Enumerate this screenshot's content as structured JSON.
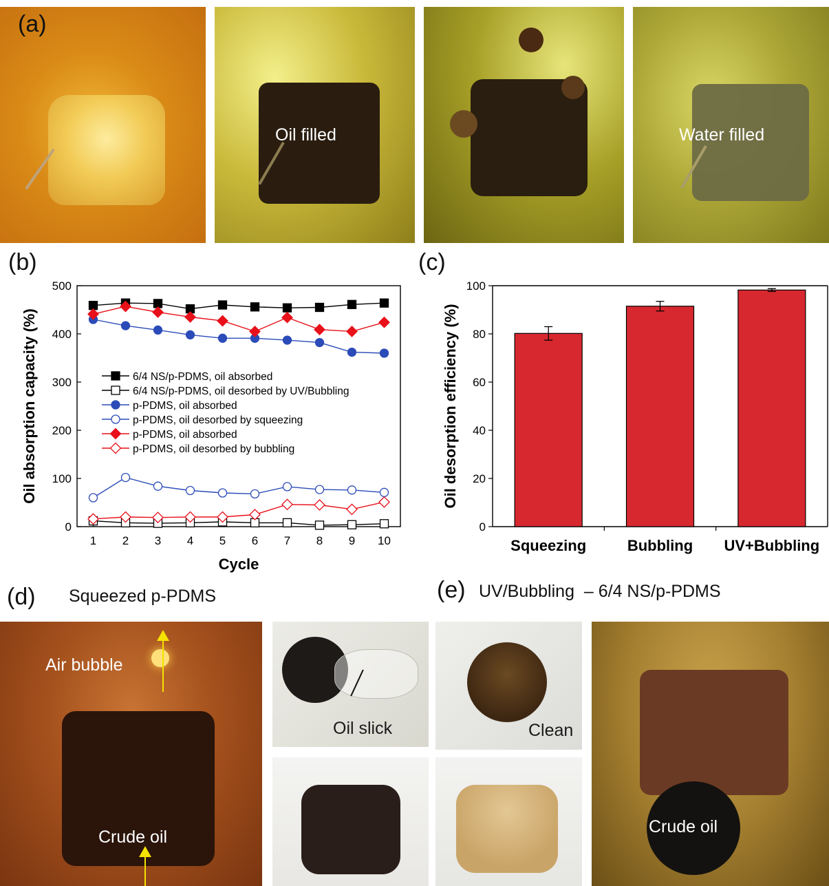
{
  "panels": {
    "a": {
      "letter": "(a)",
      "labels": [
        "Oil filled",
        "Water filled"
      ]
    },
    "b": {
      "letter": "(b)"
    },
    "c": {
      "letter": "(c)"
    },
    "d": {
      "letter": "(d)",
      "heading": "Squeezed p-PDMS",
      "labels": {
        "air_bubble": "Air bubble",
        "crude_oil": "Crude oil",
        "oil_slick": "Oil slick"
      }
    },
    "e": {
      "letter": "(e)",
      "heading": "UV/Bubbling  – 6/4 NS/p-PDMS",
      "labels": {
        "clean": "Clean",
        "crude_oil": "Crude oil"
      }
    }
  },
  "chart_data": [
    {
      "type": "line",
      "panel": "b",
      "xlabel": "Cycle",
      "ylabel": "Oil absorption capacity (%)",
      "xlim": [
        0.5,
        10.5
      ],
      "ylim": [
        0,
        500
      ],
      "xticks": [
        1,
        2,
        3,
        4,
        5,
        6,
        7,
        8,
        9,
        10
      ],
      "yticks": [
        0,
        100,
        200,
        300,
        400,
        500
      ],
      "legend_position": "center-left",
      "x": [
        1,
        2,
        3,
        4,
        5,
        6,
        7,
        8,
        9,
        10
      ],
      "series": [
        {
          "name": "6/4 NS/p-PDMS, oil absorbed",
          "marker": "square-filled",
          "color": "#000000",
          "values": [
            459,
            464,
            463,
            452,
            460,
            456,
            454,
            455,
            461,
            464
          ]
        },
        {
          "name": "6/4 NS/p-PDMS, oil desorbed by UV/Bubbling",
          "marker": "square-open",
          "color": "#000000",
          "values": [
            12,
            8,
            7,
            8,
            10,
            8,
            8,
            3,
            4,
            6
          ]
        },
        {
          "name": "p-PDMS, oil absorbed",
          "marker": "circle-filled",
          "color": "#2b4bb8",
          "values": [
            430,
            417,
            408,
            398,
            391,
            391,
            387,
            382,
            362,
            360
          ]
        },
        {
          "name": "p-PDMS, oil desorbed by squeezing",
          "marker": "circle-open",
          "color": "#2b4bb8",
          "values": [
            60,
            102,
            84,
            75,
            70,
            68,
            83,
            77,
            76,
            71
          ]
        },
        {
          "name": "p-PDMS, oil absorbed",
          "marker": "diamond-filled",
          "color": "#e8101a",
          "values": [
            441,
            457,
            445,
            435,
            427,
            405,
            434,
            409,
            405,
            424
          ]
        },
        {
          "name": "p-PDMS, oil desorbed by bubbling",
          "marker": "diamond-open",
          "color": "#e8101a",
          "values": [
            16,
            20,
            19,
            20,
            20,
            25,
            46,
            45,
            36,
            51
          ]
        }
      ]
    },
    {
      "type": "bar",
      "panel": "c",
      "ylabel": "Oil desorption efficiency (%)",
      "ylim": [
        0,
        100
      ],
      "yticks": [
        0,
        20,
        40,
        60,
        80,
        100
      ],
      "categories": [
        "Squeezing",
        "Bubbling",
        "UV+Bubbling"
      ],
      "values": [
        80.2,
        91.5,
        98.2
      ],
      "errors": [
        2.8,
        2.0,
        0.6
      ],
      "bar_color": "#d7282f"
    }
  ]
}
